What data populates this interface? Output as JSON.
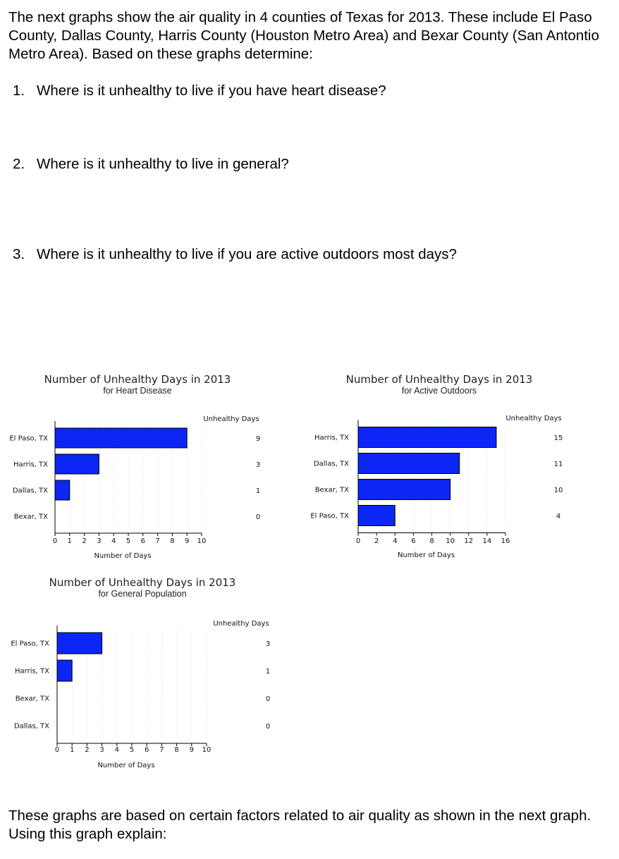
{
  "intro": "The next graphs show the air quality in 4 counties of Texas for 2013.  These include El Paso County, Dallas County, Harris County (Houston Metro Area) and Bexar County (San Antontio Metro Area).  Based on these graphs determine:",
  "questions": [
    {
      "num": "1.",
      "text": "Where is it unhealthy to live if you have heart disease?"
    },
    {
      "num": "2.",
      "text": "Where is it unhealthy to live in general?"
    },
    {
      "num": "3.",
      "text": "Where is it unhealthy to live if you are active outdoors most days?"
    }
  ],
  "outro": "These graphs are based on certain factors related to air quality as shown in the next graph.  Using this graph explain:",
  "colors": {
    "bar": "#0b26f5"
  },
  "chart_data": [
    {
      "type": "bar",
      "orientation": "horizontal",
      "title": "Number of Unhealthy Days in 2013",
      "subtitle": "for Heart Disease",
      "xlabel": "Number of Days",
      "value_header": "Unhealthy Days",
      "categories": [
        "El Paso, TX",
        "Harris, TX",
        "Dallas, TX",
        "Bexar, TX"
      ],
      "values": [
        9,
        3,
        1,
        0
      ],
      "value_labels": [
        "9",
        "3",
        "1",
        "0"
      ],
      "xlim": [
        0,
        10
      ],
      "ticks": [
        "0",
        "1",
        "2",
        "3",
        "4",
        "5",
        "6",
        "7",
        "8",
        "9",
        "10"
      ],
      "grid": true
    },
    {
      "type": "bar",
      "orientation": "horizontal",
      "title": "Number of Unhealthy Days in 2013",
      "subtitle": "for Active Outdoors",
      "xlabel": "Number of Days",
      "value_header": "Unhealthy Days",
      "categories": [
        "Harris, TX",
        "Dallas, TX",
        "Bexar, TX",
        "El Paso, TX"
      ],
      "values": [
        15,
        11,
        10,
        4
      ],
      "value_labels": [
        "15",
        "11",
        "10",
        "4"
      ],
      "xlim": [
        0,
        16
      ],
      "ticks": [
        "0",
        "2",
        "4",
        "6",
        "8",
        "10",
        "12",
        "14",
        "16"
      ],
      "grid": true
    },
    {
      "type": "bar",
      "orientation": "horizontal",
      "title": "Number of Unhealthy Days in 2013",
      "subtitle": "for General Population",
      "xlabel": "Number of Days",
      "value_header": "Unhealthy Days",
      "categories": [
        "El Paso, TX",
        "Harris, TX",
        "Bexar, TX",
        "Dallas, TX"
      ],
      "values": [
        3,
        1,
        0,
        0
      ],
      "value_labels": [
        "3",
        "1",
        "0",
        "0"
      ],
      "xlim": [
        0,
        10
      ],
      "ticks": [
        "0",
        "1",
        "2",
        "3",
        "4",
        "5",
        "6",
        "7",
        "8",
        "9",
        "10"
      ],
      "grid": true
    }
  ]
}
